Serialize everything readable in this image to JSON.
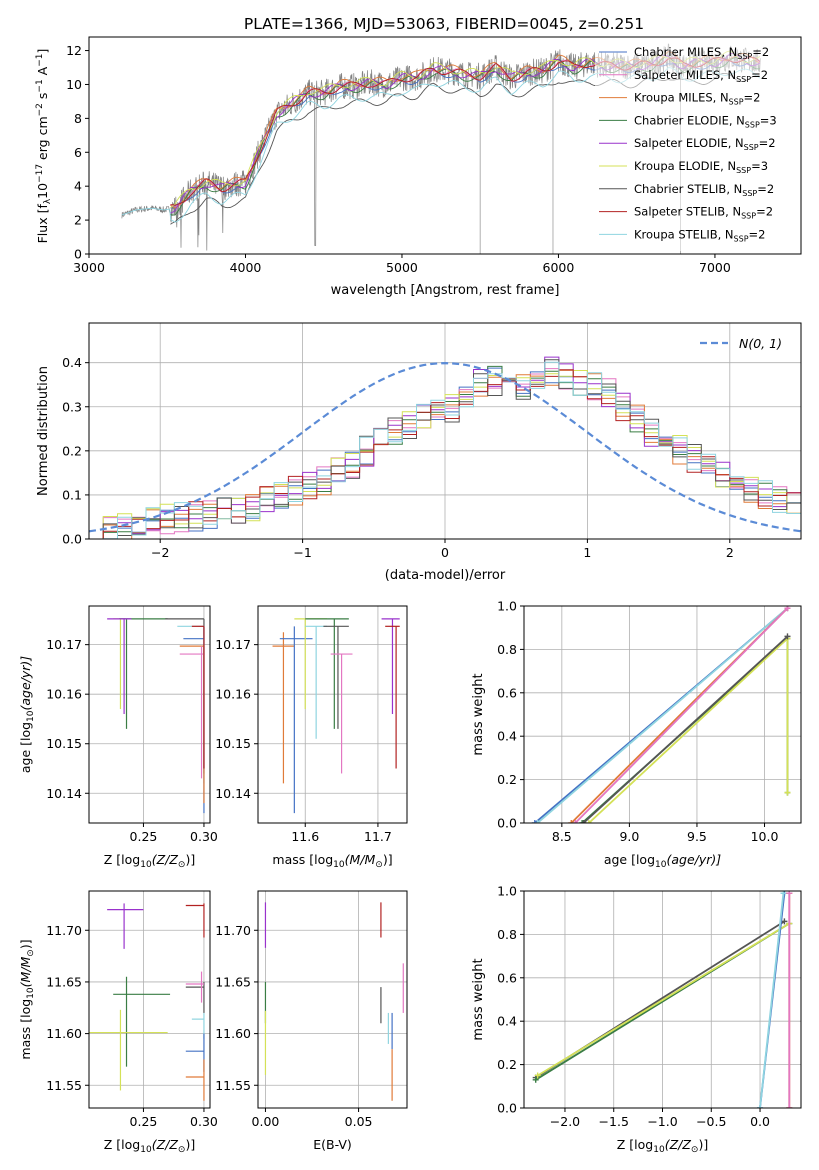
{
  "figure_title": "PLATE=1366, MJD=53063, FIBERID=0045, z=0.251",
  "colors": {
    "Chabrier MILES": "#4472c4",
    "Salpeter MILES": "#e377c2",
    "Kroupa MILES": "#e07b39",
    "Chabrier ELODIE": "#3a7d44",
    "Salpeter ELODIE": "#9932cc",
    "Kroupa ELODIE": "#d4e157",
    "Chabrier STELIB": "#555555",
    "Salpeter STELIB": "#b22222",
    "Kroupa STELIB": "#8fd4e0",
    "data": "#808080",
    "normal": "#5b8bd6"
  },
  "chart_data": [
    {
      "id": "spectrum",
      "type": "line",
      "title": "PLATE=1366, MJD=53063, FIBERID=0045, z=0.251",
      "xlabel": "wavelength [Angstrom, rest frame]",
      "ylabel_parts": [
        "Flux [f",
        "λ",
        "10",
        "−17",
        " erg cm",
        "−2",
        " s",
        "−1",
        " A",
        "−1",
        "]"
      ],
      "xlim": [
        3000,
        7550
      ],
      "ylim": [
        0,
        12.8
      ],
      "xticks": [
        3000,
        4000,
        5000,
        6000,
        7000
      ],
      "yticks": [
        0,
        2,
        4,
        6,
        8,
        10,
        12
      ],
      "legend_position": "top-right",
      "legend": [
        {
          "label": "Chabrier MILES",
          "nssp": "2"
        },
        {
          "label": "Salpeter MILES",
          "nssp": "2"
        },
        {
          "label": "Kroupa MILES",
          "nssp": "2"
        },
        {
          "label": "Chabrier ELODIE",
          "nssp": "3"
        },
        {
          "label": "Salpeter ELODIE",
          "nssp": "2"
        },
        {
          "label": "Kroupa ELODIE",
          "nssp": "3"
        },
        {
          "label": "Chabrier STELIB",
          "nssp": "2"
        },
        {
          "label": "Salpeter STELIB",
          "nssp": "2"
        },
        {
          "label": "Kroupa STELIB",
          "nssp": "2"
        }
      ],
      "nssp_label": "N",
      "nssp_sub": "SSP",
      "data_x": [
        3210,
        3300,
        3400,
        3480,
        3550,
        3650,
        3750,
        3850,
        3920,
        4000,
        4100,
        4200,
        4300,
        4400,
        4500,
        4600,
        4700,
        4800,
        4900,
        5000,
        5100,
        5200,
        5300,
        5400,
        5500,
        5600,
        5700,
        5800,
        5900,
        6000,
        6100,
        6200,
        6300,
        6400,
        6500,
        6600,
        6700,
        6800,
        6900,
        7000,
        7100,
        7200,
        7290
      ],
      "data_y": [
        2.3,
        2.6,
        2.7,
        2.6,
        2.7,
        3.7,
        4.2,
        3.9,
        4.1,
        4.2,
        6.3,
        8.3,
        8.9,
        9.5,
        9.5,
        9.9,
        9.9,
        10.1,
        10.0,
        10.4,
        10.4,
        10.9,
        10.8,
        10.6,
        10.5,
        11.0,
        10.4,
        10.7,
        10.8,
        11.4,
        11.0,
        11.3,
        11.1,
        11.1,
        11.1,
        11.2,
        11.6,
        11.1,
        11.3,
        11.3,
        11.6,
        11.4,
        11.3
      ]
    },
    {
      "id": "residuals",
      "type": "histogram",
      "xlabel": "(data-model)/error",
      "ylabel": "Normed distribution",
      "xlim": [
        -2.5,
        2.5
      ],
      "ylim": [
        0,
        0.49
      ],
      "xticks": [
        -2,
        -1,
        0,
        1,
        2
      ],
      "yticks": [
        0.0,
        0.1,
        0.2,
        0.3,
        0.4
      ],
      "legend_label": "N(0, 1)",
      "legend_position": "top-right",
      "bins_x": [
        -2.5,
        -2.4,
        -2.3,
        -2.2,
        -2.1,
        -2.0,
        -1.9,
        -1.8,
        -1.7,
        -1.6,
        -1.5,
        -1.4,
        -1.3,
        -1.2,
        -1.1,
        -1.0,
        -0.9,
        -0.8,
        -0.7,
        -0.6,
        -0.5,
        -0.4,
        -0.3,
        -0.2,
        -0.1,
        0.0,
        0.1,
        0.2,
        0.3,
        0.4,
        0.5,
        0.6,
        0.7,
        0.8,
        0.9,
        1.0,
        1.1,
        1.2,
        1.3,
        1.4,
        1.5,
        1.6,
        1.7,
        1.8,
        1.9,
        2.0,
        2.1,
        2.2,
        2.3,
        2.4
      ],
      "mean_density": [
        0.02,
        0.025,
        0.03,
        0.035,
        0.04,
        0.045,
        0.05,
        0.05,
        0.055,
        0.06,
        0.065,
        0.075,
        0.085,
        0.1,
        0.11,
        0.12,
        0.135,
        0.15,
        0.17,
        0.2,
        0.22,
        0.24,
        0.26,
        0.28,
        0.29,
        0.3,
        0.32,
        0.35,
        0.36,
        0.34,
        0.35,
        0.37,
        0.38,
        0.37,
        0.36,
        0.35,
        0.33,
        0.3,
        0.27,
        0.24,
        0.22,
        0.2,
        0.18,
        0.16,
        0.14,
        0.13,
        0.11,
        0.1,
        0.09,
        0.08
      ]
    },
    {
      "id": "age-vs-Z",
      "type": "scatter",
      "xlabel_parts": [
        "Z [log",
        "10",
        "(Z/Z",
        "⊙",
        ")]"
      ],
      "ylabel_parts": [
        "age  [log",
        "10",
        "(age/yr)]"
      ],
      "xlim": [
        0.205,
        0.305
      ],
      "ylim": [
        10.134,
        10.1778
      ],
      "xticks": [
        0.25,
        0.3
      ],
      "yticks": [
        10.14,
        10.15,
        10.16,
        10.17
      ],
      "points": [
        {
          "model": "Kroupa ELODIE",
          "x": 0.231,
          "y": 10.1752,
          "xerr": [
            0.225,
            0.235
          ],
          "yerr": [
            10.157,
            10.1752
          ]
        },
        {
          "model": "Chabrier ELODIE",
          "x": 0.236,
          "y": 10.1752,
          "xerr": [
            0.23,
            0.27
          ],
          "yerr": [
            10.153,
            10.1752
          ]
        },
        {
          "model": "Salpeter ELODIE",
          "x": 0.234,
          "y": 10.1752,
          "xerr": [
            0.22,
            0.24
          ],
          "yerr": [
            10.156,
            10.1752
          ]
        },
        {
          "model": "Chabrier STELIB",
          "x": 0.3,
          "y": 10.1752,
          "xerr": [
            0.268,
            0.3
          ],
          "yerr": [
            10.144,
            10.1752
          ]
        },
        {
          "model": "Kroupa STELIB",
          "x": 0.3,
          "y": 10.1737,
          "xerr": [
            0.278,
            0.3
          ],
          "yerr": [
            10.142,
            10.1737
          ]
        },
        {
          "model": "Chabrier MILES",
          "x": 0.3,
          "y": 10.1712,
          "xerr": [
            0.283,
            0.3
          ],
          "yerr": [
            10.136,
            10.1737
          ]
        },
        {
          "model": "Kroupa MILES",
          "x": 0.3,
          "y": 10.1697,
          "xerr": [
            0.28,
            0.3
          ],
          "yerr": [
            10.138,
            10.1697
          ]
        },
        {
          "model": "Salpeter MILES",
          "x": 0.298,
          "y": 10.1681,
          "xerr": [
            0.28,
            0.3
          ],
          "yerr": [
            10.143,
            10.1697
          ]
        },
        {
          "model": "Salpeter STELIB",
          "x": 0.3,
          "y": 10.1737,
          "xerr": [
            0.29,
            0.3
          ],
          "yerr": [
            10.145,
            10.1737
          ]
        }
      ]
    },
    {
      "id": "age-vs-mass",
      "type": "scatter",
      "xlabel_parts": [
        "mass [log",
        "10",
        "(M/M",
        "⊙",
        ")]"
      ],
      "xlim": [
        11.535,
        11.74
      ],
      "ylim": [
        10.134,
        10.1778
      ],
      "xticks": [
        11.6,
        11.7
      ],
      "yticks": [
        10.14,
        10.15,
        10.16,
        10.17
      ],
      "points": [
        {
          "model": "Kroupa MILES",
          "x": 11.57,
          "y": 10.1697,
          "xerr": [
            11.555,
            11.585
          ],
          "yerr": [
            10.142,
            10.1725
          ]
        },
        {
          "model": "Chabrier MILES",
          "x": 11.585,
          "y": 10.1712,
          "xerr": [
            11.565,
            11.61
          ],
          "yerr": [
            10.136,
            10.1737
          ]
        },
        {
          "model": "Kroupa ELODIE",
          "x": 11.6,
          "y": 10.1752,
          "xerr": [
            11.585,
            11.63
          ],
          "yerr": [
            10.157,
            10.1752
          ]
        },
        {
          "model": "Kroupa STELIB",
          "x": 11.615,
          "y": 10.1737,
          "xerr": [
            11.6,
            11.63
          ],
          "yerr": [
            10.151,
            10.1737
          ]
        },
        {
          "model": "Chabrier ELODIE",
          "x": 11.64,
          "y": 10.1752,
          "xerr": [
            11.6,
            11.66
          ],
          "yerr": [
            10.153,
            10.1752
          ]
        },
        {
          "model": "Chabrier STELIB",
          "x": 11.645,
          "y": 10.1737,
          "xerr": [
            11.625,
            11.66
          ],
          "yerr": [
            10.153,
            10.1737
          ]
        },
        {
          "model": "Salpeter MILES",
          "x": 11.65,
          "y": 10.1681,
          "xerr": [
            11.635,
            11.665
          ],
          "yerr": [
            10.144,
            10.1681
          ]
        },
        {
          "model": "Salpeter ELODIE",
          "x": 11.72,
          "y": 10.1752,
          "xerr": [
            11.705,
            11.73
          ],
          "yerr": [
            10.156,
            10.1752
          ]
        },
        {
          "model": "Salpeter STELIB",
          "x": 11.725,
          "y": 10.1737,
          "xerr": [
            11.71,
            11.73
          ],
          "yerr": [
            10.145,
            10.1737
          ]
        }
      ]
    },
    {
      "id": "mass-weight-vs-age",
      "type": "line",
      "xlabel_parts": [
        "age  [log",
        "10",
        "(age/yr)]"
      ],
      "ylabel": "mass weight",
      "xlim": [
        8.22,
        10.27
      ],
      "ylim": [
        0.0,
        1.0
      ],
      "xticks": [
        8.5,
        9.0,
        9.5,
        10.0
      ],
      "yticks": [
        0.0,
        0.2,
        0.4,
        0.6,
        0.8,
        1.0
      ],
      "series": [
        {
          "model": "Chabrier MILES",
          "x": [
            8.3,
            10.17
          ],
          "y": [
            0.0,
            0.99
          ]
        },
        {
          "model": "Kroupa STELIB",
          "x": [
            8.32,
            10.17
          ],
          "y": [
            0.0,
            0.99
          ]
        },
        {
          "model": "Kroupa MILES",
          "x": [
            8.57,
            10.17
          ],
          "y": [
            0.0,
            0.99
          ]
        },
        {
          "model": "Salpeter MILES",
          "x": [
            8.6,
            10.17
          ],
          "y": [
            0.0,
            0.99
          ]
        },
        {
          "model": "Chabrier ELODIE",
          "x": [
            8.65,
            10.17,
            10.17
          ],
          "y": [
            0.0,
            0.85,
            0.14
          ]
        },
        {
          "model": "Kroupa ELODIE",
          "x": [
            8.7,
            10.17,
            10.17
          ],
          "y": [
            0.0,
            0.85,
            0.14
          ]
        },
        {
          "model": "Chabrier STELIB",
          "x": [
            8.66,
            10.17
          ],
          "y": [
            0.0,
            0.86
          ]
        }
      ]
    },
    {
      "id": "mass-vs-Z",
      "type": "scatter",
      "xlabel_parts": [
        "Z [log",
        "10",
        "(Z/Z",
        "⊙",
        ")]"
      ],
      "ylabel_parts": [
        "mass [log",
        "10",
        "(M/M",
        "⊙",
        ")]"
      ],
      "xlim": [
        0.205,
        0.305
      ],
      "ylim": [
        11.528,
        11.738
      ],
      "xticks": [
        0.25,
        0.3
      ],
      "yticks": [
        11.55,
        11.6,
        11.65,
        11.7
      ],
      "points": [
        {
          "model": "Salpeter ELODIE",
          "x": 0.234,
          "y": 11.72,
          "xerr": [
            0.22,
            0.25
          ],
          "yerr": [
            11.682,
            11.726
          ]
        },
        {
          "model": "Chabrier ELODIE",
          "x": 0.236,
          "y": 11.638,
          "xerr": [
            0.225,
            0.272
          ],
          "yerr": [
            11.568,
            11.655
          ]
        },
        {
          "model": "Kroupa ELODIE",
          "x": 0.231,
          "y": 11.601,
          "xerr": [
            0.205,
            0.27
          ],
          "yerr": [
            11.545,
            11.623
          ]
        },
        {
          "model": "Salpeter STELIB",
          "x": 0.3,
          "y": 11.724,
          "xerr": [
            0.285,
            0.3
          ],
          "yerr": [
            11.693,
            11.726
          ]
        },
        {
          "model": "Chabrier STELIB",
          "x": 0.3,
          "y": 11.645,
          "xerr": [
            0.285,
            0.3
          ],
          "yerr": [
            11.62,
            11.65
          ]
        },
        {
          "model": "Salpeter MILES",
          "x": 0.298,
          "y": 11.648,
          "xerr": [
            0.285,
            0.3
          ],
          "yerr": [
            11.63,
            11.66
          ]
        },
        {
          "model": "Kroupa STELIB",
          "x": 0.3,
          "y": 11.614,
          "xerr": [
            0.29,
            0.3
          ],
          "yerr": [
            11.595,
            11.62
          ]
        },
        {
          "model": "Chabrier MILES",
          "x": 0.3,
          "y": 11.583,
          "xerr": [
            0.285,
            0.3
          ],
          "yerr": [
            11.563,
            11.6
          ]
        },
        {
          "model": "Kroupa MILES",
          "x": 0.3,
          "y": 11.558,
          "xerr": [
            0.285,
            0.3
          ],
          "yerr": [
            11.535,
            11.575
          ]
        }
      ]
    },
    {
      "id": "mass-vs-ebv",
      "type": "scatter",
      "xlabel": "E(B-V)",
      "xlim": [
        -0.004,
        0.076
      ],
      "ylim": [
        11.528,
        11.738
      ],
      "xticks": [
        0.0,
        0.05
      ],
      "yticks": [
        11.55,
        11.6,
        11.65,
        11.7
      ],
      "points": [
        {
          "model": "Salpeter ELODIE",
          "x": 0.0,
          "y": 11.705,
          "yerr": [
            11.683,
            11.727
          ]
        },
        {
          "model": "Chabrier ELODIE",
          "x": 0.0,
          "y": 11.63,
          "yerr": [
            11.61,
            11.65
          ]
        },
        {
          "model": "Kroupa ELODIE",
          "x": 0.0,
          "y": 11.59,
          "yerr": [
            11.56,
            11.622
          ]
        },
        {
          "model": "Salpeter STELIB",
          "x": 0.062,
          "y": 11.71,
          "yerr": [
            11.693,
            11.727
          ]
        },
        {
          "model": "Chabrier STELIB",
          "x": 0.062,
          "y": 11.63,
          "yerr": [
            11.61,
            11.645
          ]
        },
        {
          "model": "Kroupa STELIB",
          "x": 0.066,
          "y": 11.605,
          "yerr": [
            11.59,
            11.62
          ]
        },
        {
          "model": "Chabrier MILES",
          "x": 0.068,
          "y": 11.6,
          "yerr": [
            11.585,
            11.62
          ]
        },
        {
          "model": "Kroupa MILES",
          "x": 0.068,
          "y": 11.56,
          "yerr": [
            11.535,
            11.585
          ]
        },
        {
          "model": "Salpeter MILES",
          "x": 0.074,
          "y": 11.645,
          "yerr": [
            11.62,
            11.668
          ]
        }
      ]
    },
    {
      "id": "mass-weight-vs-Z",
      "type": "line",
      "xlabel_parts": [
        "Z [log",
        "10",
        "(Z/Z",
        "⊙",
        ")]"
      ],
      "ylabel": "mass weight",
      "xlim": [
        -2.42,
        0.42
      ],
      "ylim": [
        0.0,
        1.0
      ],
      "xticks": [
        -2.0,
        -1.5,
        -1.0,
        -0.5,
        0.0
      ],
      "yticks": [
        0.0,
        0.2,
        0.4,
        0.6,
        0.8,
        1.0
      ],
      "series": [
        {
          "model": "Chabrier STELIB",
          "x": [
            -2.3,
            0.25
          ],
          "y": [
            0.14,
            0.86
          ]
        },
        {
          "model": "Chabrier ELODIE",
          "x": [
            -2.3,
            0.3
          ],
          "y": [
            0.13,
            0.85
          ]
        },
        {
          "model": "Kroupa ELODIE",
          "x": [
            -2.28,
            0.3
          ],
          "y": [
            0.15,
            0.85
          ]
        },
        {
          "model": "Chabrier MILES",
          "x": [
            0.0,
            0.25
          ],
          "y": [
            0.0,
            0.99
          ]
        },
        {
          "model": "Kroupa STELIB",
          "x": [
            0.0,
            0.24
          ],
          "y": [
            0.0,
            0.99
          ]
        },
        {
          "model": "Kroupa MILES",
          "x": [
            0.3,
            0.3
          ],
          "y": [
            0.0,
            0.99
          ]
        },
        {
          "model": "Salpeter MILES",
          "x": [
            0.3,
            0.3
          ],
          "y": [
            0.0,
            0.99
          ]
        }
      ]
    }
  ]
}
